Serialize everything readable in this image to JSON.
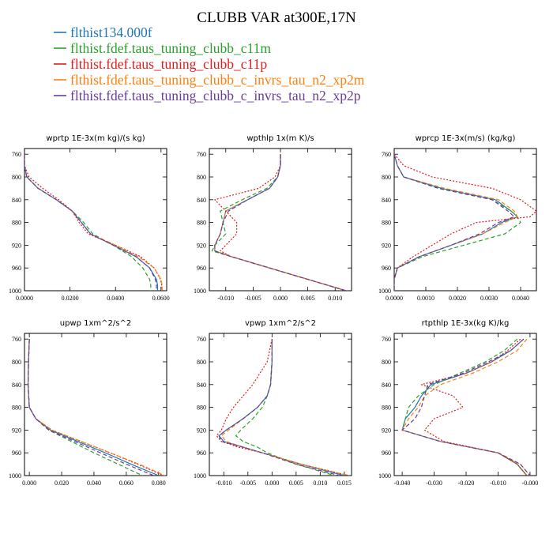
{
  "title": "CLUBB VAR at300E,17N",
  "colors": {
    "blue": "#1f77b4",
    "green": "#2ca02c",
    "red": "#e41a1c",
    "orange": "#ff7f0e",
    "purple": "#6a3d9a"
  },
  "legend": [
    {
      "label": "flthist134.000f",
      "color": "#1f77b4",
      "dash": "solid"
    },
    {
      "label": "flthist.fdef.taus_tuning_clubb_c11m",
      "color": "#2ca02c",
      "dash": "dash"
    },
    {
      "label": "flthist.fdef.taus_tuning_clubb_c11p",
      "color": "#e41a1c",
      "dash": "dot"
    },
    {
      "label": "flthist.fdef.taus_tuning_clubb_c_invrs_tau_n2_xp2m",
      "color": "#ff7f0e",
      "dash": "dash"
    },
    {
      "label": "flthist.fdef.taus_tuning_clubb_c_invrs_tau_n2_xp2p",
      "color": "#6a3d9a",
      "dash": "dash"
    }
  ],
  "chart_data": [
    {
      "type": "line",
      "title": "wprtp  1E-3x(m kg)/(s kg)",
      "xlim": [
        0.0,
        0.0625
      ],
      "ylim": [
        750,
        1000
      ],
      "y_inverted": true,
      "xticks": [
        0.0,
        0.02,
        0.04,
        0.06
      ],
      "xticklabels": [
        "0.0000",
        "0.0200",
        "0.0400",
        "0.0600"
      ],
      "yticks": [
        760,
        800,
        840,
        880,
        920,
        960,
        1000
      ],
      "y": [
        760,
        780,
        800,
        820,
        840,
        860,
        880,
        900,
        920,
        940,
        960,
        980,
        990,
        1000
      ],
      "series": [
        {
          "name": "flthist134.000f",
          "color": "#1f77b4",
          "dash": "solid",
          "x": [
            0.0,
            0.0,
            0.001,
            0.006,
            0.014,
            0.021,
            0.025,
            0.029,
            0.039,
            0.049,
            0.055,
            0.058,
            0.0585,
            0.0585
          ]
        },
        {
          "name": "flthist.fdef.taus_tuning_clubb_c11m",
          "color": "#2ca02c",
          "dash": "dash",
          "x": [
            0.0,
            0.0,
            0.001,
            0.006,
            0.014,
            0.021,
            0.026,
            0.03,
            0.039,
            0.047,
            0.052,
            0.055,
            0.0555,
            0.0555
          ]
        },
        {
          "name": "flthist.fdef.taus_tuning_clubb_c11p",
          "color": "#e41a1c",
          "dash": "dot",
          "x": [
            0.0,
            0.0,
            0.002,
            0.008,
            0.015,
            0.021,
            0.024,
            0.028,
            0.04,
            0.051,
            0.057,
            0.0598,
            0.0603,
            0.0603
          ]
        },
        {
          "name": "flthist.fdef.taus_tuning_clubb_c_invrs_tau_n2_xp2m",
          "color": "#ff7f0e",
          "dash": "dash",
          "x": [
            0.0,
            0.0,
            0.001,
            0.006,
            0.014,
            0.021,
            0.025,
            0.029,
            0.04,
            0.05,
            0.057,
            0.06,
            0.0605,
            0.0605
          ]
        },
        {
          "name": "flthist.fdef.taus_tuning_clubb_c_invrs_tau_n2_xp2p",
          "color": "#6a3d9a",
          "dash": "dash",
          "x": [
            0.0,
            0.0,
            0.001,
            0.006,
            0.014,
            0.021,
            0.025,
            0.029,
            0.039,
            0.049,
            0.055,
            0.0575,
            0.058,
            0.058
          ]
        }
      ]
    },
    {
      "type": "line",
      "title": "wpthlp  1x(m K)/s",
      "xlim": [
        -0.013,
        0.013
      ],
      "ylim": [
        750,
        1000
      ],
      "y_inverted": true,
      "xticks": [
        -0.01,
        -0.005,
        0.0,
        0.005,
        0.01
      ],
      "xticklabels": [
        "-0.010",
        "-0.005",
        "0.000",
        "0.005",
        "0.010"
      ],
      "yticks": [
        760,
        800,
        840,
        880,
        920,
        960,
        1000
      ],
      "y": [
        760,
        780,
        800,
        820,
        840,
        860,
        880,
        900,
        920,
        930,
        940,
        960,
        980,
        1000
      ],
      "series": [
        {
          "name": "flthist134.000f",
          "color": "#1f77b4",
          "dash": "solid",
          "x": [
            0.0,
            0.0,
            -0.0005,
            -0.002,
            -0.006,
            -0.01,
            -0.0105,
            -0.011,
            -0.012,
            -0.012,
            -0.009,
            -0.002,
            0.005,
            0.012
          ]
        },
        {
          "name": "flthist.fdef.taus_tuning_clubb_c11m",
          "color": "#2ca02c",
          "dash": "dash",
          "x": [
            0.0,
            0.0,
            -0.0005,
            -0.0025,
            -0.007,
            -0.011,
            -0.0105,
            -0.01,
            -0.012,
            -0.0125,
            -0.009,
            -0.002,
            0.005,
            0.012
          ]
        },
        {
          "name": "flthist.fdef.taus_tuning_clubb_c11p",
          "color": "#e41a1c",
          "dash": "dot",
          "x": [
            0.0,
            0.0,
            -0.001,
            -0.004,
            -0.012,
            -0.01,
            -0.008,
            -0.008,
            -0.01,
            -0.011,
            -0.009,
            -0.002,
            0.005,
            0.012
          ]
        },
        {
          "name": "flthist.fdef.taus_tuning_clubb_c_invrs_tau_n2_xp2m",
          "color": "#ff7f0e",
          "dash": "dash",
          "x": [
            0.0,
            0.0,
            -0.0005,
            -0.002,
            -0.006,
            -0.01,
            -0.0105,
            -0.011,
            -0.012,
            -0.012,
            -0.009,
            -0.002,
            0.005,
            0.012
          ]
        },
        {
          "name": "flthist.fdef.taus_tuning_clubb_c_invrs_tau_n2_xp2p",
          "color": "#6a3d9a",
          "dash": "dash",
          "x": [
            0.0,
            0.0,
            -0.0005,
            -0.002,
            -0.006,
            -0.0095,
            -0.0105,
            -0.011,
            -0.012,
            -0.012,
            -0.009,
            -0.002,
            0.005,
            0.012
          ]
        }
      ]
    },
    {
      "type": "line",
      "title": "wprcp  1E-3x(m/s) (kg/kg)",
      "xlim": [
        0.0,
        0.0045
      ],
      "ylim": [
        750,
        1000
      ],
      "y_inverted": true,
      "xticks": [
        0.0,
        0.001,
        0.002,
        0.003,
        0.004
      ],
      "xticklabels": [
        "0.0000",
        "0.0010",
        "0.0020",
        "0.0030",
        "0.0040"
      ],
      "yticks": [
        760,
        800,
        840,
        880,
        920,
        960,
        1000
      ],
      "y": [
        760,
        780,
        800,
        820,
        840,
        860,
        870,
        880,
        900,
        920,
        940,
        960,
        980,
        1000
      ],
      "series": [
        {
          "name": "flthist134.000f",
          "color": "#1f77b4",
          "dash": "solid",
          "x": [
            0.0,
            0.0001,
            0.0003,
            0.0015,
            0.0032,
            0.0037,
            0.0039,
            0.0034,
            0.0028,
            0.0018,
            0.0008,
            0.0001,
            0.0,
            0.0
          ]
        },
        {
          "name": "flthist.fdef.taus_tuning_clubb_c11m",
          "color": "#2ca02c",
          "dash": "dash",
          "x": [
            0.0,
            0.0001,
            0.0003,
            0.0014,
            0.0031,
            0.0037,
            0.0039,
            0.004,
            0.0035,
            0.0022,
            0.0009,
            0.0001,
            0.0,
            0.0
          ]
        },
        {
          "name": "flthist.fdef.taus_tuning_clubb_c11p",
          "color": "#e41a1c",
          "dash": "dot",
          "x": [
            0.0,
            0.0003,
            0.0012,
            0.0031,
            0.004,
            0.0045,
            0.0043,
            0.0026,
            0.0018,
            0.0012,
            0.0006,
            0.0001,
            0.0,
            0.0
          ]
        },
        {
          "name": "flthist.fdef.taus_tuning_clubb_c_invrs_tau_n2_xp2m",
          "color": "#ff7f0e",
          "dash": "dash",
          "x": [
            0.0,
            0.0001,
            0.0003,
            0.0016,
            0.0033,
            0.0038,
            0.0039,
            0.0035,
            0.0028,
            0.0018,
            0.0008,
            0.0001,
            0.0,
            0.0
          ]
        },
        {
          "name": "flthist.fdef.taus_tuning_clubb_c_invrs_tau_n2_xp2p",
          "color": "#6a3d9a",
          "dash": "dash",
          "x": [
            0.0,
            0.0001,
            0.0003,
            0.0014,
            0.0031,
            0.0036,
            0.0038,
            0.0033,
            0.0027,
            0.0018,
            0.0008,
            0.0001,
            0.0,
            0.0
          ]
        }
      ]
    },
    {
      "type": "line",
      "title": "upwp  1xm^2/s^2",
      "xlim": [
        -0.003,
        0.085
      ],
      "ylim": [
        750,
        1000
      ],
      "y_inverted": true,
      "xticks": [
        0.0,
        0.02,
        0.04,
        0.06,
        0.08
      ],
      "xticklabels": [
        "0.000",
        "0.020",
        "0.040",
        "0.060",
        "0.080"
      ],
      "yticks": [
        760,
        800,
        840,
        880,
        920,
        960,
        1000
      ],
      "y": [
        760,
        800,
        840,
        880,
        900,
        920,
        940,
        960,
        980,
        1000
      ],
      "series": [
        {
          "name": "flthist134.000f",
          "color": "#1f77b4",
          "dash": "solid",
          "x": [
            0.0,
            -0.0005,
            -0.0008,
            0.0,
            0.004,
            0.013,
            0.03,
            0.047,
            0.063,
            0.08
          ]
        },
        {
          "name": "flthist.fdef.taus_tuning_clubb_c11m",
          "color": "#2ca02c",
          "dash": "dash",
          "x": [
            0.0,
            -0.0005,
            -0.0008,
            0.0,
            0.004,
            0.012,
            0.026,
            0.04,
            0.055,
            0.07
          ]
        },
        {
          "name": "flthist.fdef.taus_tuning_clubb_c11p",
          "color": "#e41a1c",
          "dash": "dot",
          "x": [
            0.0,
            -0.0005,
            -0.0008,
            0.0,
            0.004,
            0.014,
            0.032,
            0.05,
            0.067,
            0.083
          ]
        },
        {
          "name": "flthist.fdef.taus_tuning_clubb_c_invrs_tau_n2_xp2m",
          "color": "#ff7f0e",
          "dash": "dash",
          "x": [
            0.0,
            -0.0005,
            -0.0008,
            0.0,
            0.004,
            0.014,
            0.032,
            0.05,
            0.068,
            0.084
          ]
        },
        {
          "name": "flthist.fdef.taus_tuning_clubb_c_invrs_tau_n2_xp2p",
          "color": "#6a3d9a",
          "dash": "dash",
          "x": [
            0.0,
            -0.0005,
            -0.0008,
            0.0,
            0.004,
            0.012,
            0.028,
            0.044,
            0.06,
            0.077
          ]
        }
      ]
    },
    {
      "type": "line",
      "title": "vpwp  1xm^2/s^2",
      "xlim": [
        -0.013,
        0.0165
      ],
      "ylim": [
        750,
        1000
      ],
      "y_inverted": true,
      "xticks": [
        -0.01,
        -0.005,
        0.0,
        0.005,
        0.01,
        0.015
      ],
      "xticklabels": [
        "-0.010",
        "-0.005",
        "0.000",
        "0.005",
        "0.010",
        "0.015"
      ],
      "yticks": [
        760,
        800,
        840,
        880,
        920,
        960,
        1000
      ],
      "y": [
        760,
        800,
        840,
        860,
        880,
        900,
        920,
        930,
        940,
        950,
        960,
        980,
        1000
      ],
      "series": [
        {
          "name": "flthist134.000f",
          "color": "#1f77b4",
          "dash": "solid",
          "x": [
            0.0,
            0.0,
            -0.0003,
            -0.001,
            -0.003,
            -0.006,
            -0.0095,
            -0.011,
            -0.01,
            -0.006,
            -0.002,
            0.006,
            0.015
          ]
        },
        {
          "name": "flthist.fdef.taus_tuning_clubb_c11m",
          "color": "#2ca02c",
          "dash": "dash",
          "x": [
            0.0,
            0.0,
            -0.0003,
            -0.001,
            -0.002,
            -0.004,
            -0.0065,
            -0.0075,
            -0.006,
            -0.003,
            -0.001,
            0.005,
            0.013
          ]
        },
        {
          "name": "flthist.fdef.taus_tuning_clubb_c11p",
          "color": "#e41a1c",
          "dash": "dot",
          "x": [
            0.0,
            -0.001,
            -0.004,
            -0.006,
            -0.008,
            -0.0095,
            -0.0105,
            -0.0115,
            -0.0105,
            -0.007,
            -0.002,
            0.006,
            0.016
          ]
        },
        {
          "name": "flthist.fdef.taus_tuning_clubb_c_invrs_tau_n2_xp2m",
          "color": "#ff7f0e",
          "dash": "dash",
          "x": [
            0.0,
            0.0,
            -0.0003,
            -0.001,
            -0.003,
            -0.006,
            -0.009,
            -0.0105,
            -0.0095,
            -0.006,
            -0.002,
            0.006,
            0.016
          ]
        },
        {
          "name": "flthist.fdef.taus_tuning_clubb_c_invrs_tau_n2_xp2p",
          "color": "#6a3d9a",
          "dash": "dash",
          "x": [
            0.0,
            0.0,
            -0.0003,
            -0.001,
            -0.003,
            -0.006,
            -0.0095,
            -0.011,
            -0.0105,
            -0.006,
            -0.002,
            0.005,
            0.014
          ]
        }
      ]
    },
    {
      "type": "line",
      "title": "rtpthlp  1E-3x(kg K)/kg",
      "xlim": [
        -0.0425,
        0.002
      ],
      "ylim": [
        750,
        1000
      ],
      "y_inverted": true,
      "xticks": [
        -0.04,
        -0.03,
        -0.02,
        -0.01,
        0.0
      ],
      "xticklabels": [
        "-0.040",
        "-0.030",
        "-0.020",
        "-0.010",
        "-0.000"
      ],
      "yticks": [
        760,
        800,
        840,
        880,
        920,
        960,
        1000
      ],
      "y": [
        760,
        780,
        800,
        820,
        840,
        860,
        880,
        900,
        920,
        940,
        960,
        980,
        1000
      ],
      "series": [
        {
          "name": "flthist134.000f",
          "color": "#1f77b4",
          "dash": "solid",
          "x": [
            -0.002,
            -0.006,
            -0.012,
            -0.02,
            -0.031,
            -0.034,
            -0.036,
            -0.039,
            -0.04,
            -0.028,
            -0.01,
            -0.004,
            -0.001
          ]
        },
        {
          "name": "flthist.fdef.taus_tuning_clubb_c11m",
          "color": "#2ca02c",
          "dash": "dash",
          "x": [
            -0.004,
            -0.008,
            -0.014,
            -0.022,
            -0.03,
            -0.035,
            -0.038,
            -0.039,
            -0.04,
            -0.028,
            -0.01,
            -0.004,
            -0.001
          ]
        },
        {
          "name": "flthist.fdef.taus_tuning_clubb_c11p",
          "color": "#e41a1c",
          "dash": "dot",
          "x": [
            -0.003,
            -0.007,
            -0.012,
            -0.02,
            -0.034,
            -0.024,
            -0.021,
            -0.03,
            -0.033,
            -0.027,
            -0.01,
            -0.004,
            -0.001
          ]
        },
        {
          "name": "flthist.fdef.taus_tuning_clubb_c_invrs_tau_n2_xp2m",
          "color": "#ff7f0e",
          "dash": "dash",
          "x": [
            -0.001,
            -0.004,
            -0.01,
            -0.018,
            -0.028,
            -0.033,
            -0.035,
            -0.038,
            -0.04,
            -0.028,
            -0.01,
            -0.003,
            0.0
          ]
        },
        {
          "name": "flthist.fdef.taus_tuning_clubb_c_invrs_tau_n2_xp2p",
          "color": "#6a3d9a",
          "dash": "dash",
          "x": [
            -0.002,
            -0.006,
            -0.013,
            -0.021,
            -0.032,
            -0.033,
            -0.034,
            -0.036,
            -0.04,
            -0.028,
            -0.01,
            -0.003,
            0.0
          ]
        }
      ]
    }
  ]
}
